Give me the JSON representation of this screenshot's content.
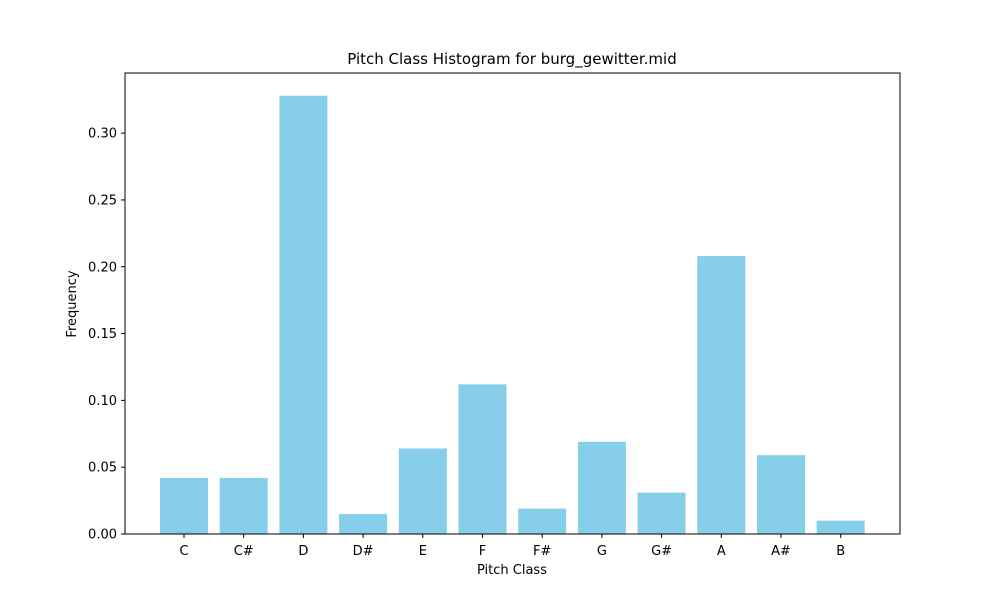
{
  "chart_data": {
    "type": "bar",
    "title": "Pitch Class Histogram for burg_gewitter.mid",
    "xlabel": "Pitch Class",
    "ylabel": "Frequency",
    "categories": [
      "C",
      "C#",
      "D",
      "D#",
      "E",
      "F",
      "F#",
      "G",
      "G#",
      "A",
      "A#",
      "B"
    ],
    "values": [
      0.042,
      0.042,
      0.328,
      0.015,
      0.064,
      0.112,
      0.019,
      0.069,
      0.031,
      0.208,
      0.059,
      0.01
    ],
    "ylim": [
      0,
      0.345
    ],
    "yticks": [
      "0.00",
      "0.05",
      "0.10",
      "0.15",
      "0.20",
      "0.25",
      "0.30"
    ],
    "grid": false,
    "bar_color": "#87ceeb"
  }
}
